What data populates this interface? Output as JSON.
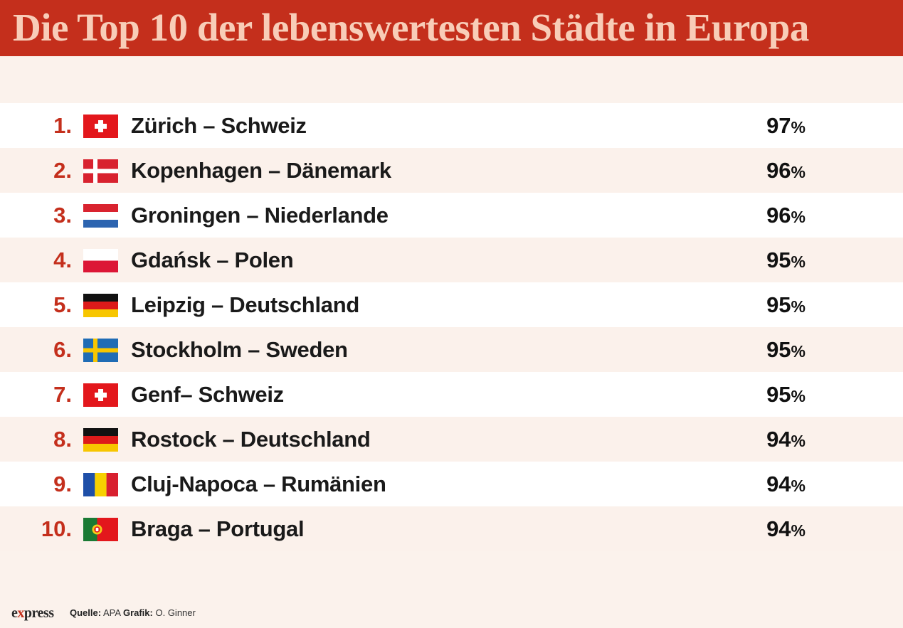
{
  "header": {
    "title": "Die Top 10 der lebenswertesten Städte in Europa"
  },
  "colors": {
    "accent": "#c42f1c",
    "title_text": "#f8cdb8",
    "background": "#fbf2ec"
  },
  "rows": [
    {
      "rank": "1.",
      "flag": "switzerland-flag-icon",
      "city": "Zürich – Schweiz",
      "value": "97",
      "unit": "%"
    },
    {
      "rank": "2.",
      "flag": "denmark-flag-icon",
      "city": "Kopenhagen – Dänemark",
      "value": "96",
      "unit": "%"
    },
    {
      "rank": "3.",
      "flag": "netherlands-flag-icon",
      "city": "Groningen – Niederlande",
      "value": "96",
      "unit": "%"
    },
    {
      "rank": "4.",
      "flag": "poland-flag-icon",
      "city": "Gdańsk – Polen",
      "value": "95",
      "unit": "%"
    },
    {
      "rank": "5.",
      "flag": "germany-flag-icon",
      "city": "Leipzig – Deutschland",
      "value": "95",
      "unit": "%"
    },
    {
      "rank": "6.",
      "flag": "sweden-flag-icon",
      "city": "Stockholm – Sweden",
      "value": "95",
      "unit": "%"
    },
    {
      "rank": "7.",
      "flag": "switzerland-flag-icon",
      "city": "Genf– Schweiz",
      "value": "95",
      "unit": "%"
    },
    {
      "rank": "8.",
      "flag": "germany-flag-icon",
      "city": "Rostock – Deutschland",
      "value": "94",
      "unit": "%"
    },
    {
      "rank": "9.",
      "flag": "romania-flag-icon",
      "city": "Cluj-Napoca – Rumänien",
      "value": "94",
      "unit": "%"
    },
    {
      "rank": "10.",
      "flag": "portugal-flag-icon",
      "city": "Braga – Portugal",
      "value": "94",
      "unit": "%"
    }
  ],
  "footer": {
    "logo_prefix": "e",
    "logo_x": "x",
    "logo_suffix": "press",
    "source_label": "Quelle:",
    "source_value": "APA",
    "graphic_label": "Grafik:",
    "graphic_value": "O. Ginner"
  }
}
